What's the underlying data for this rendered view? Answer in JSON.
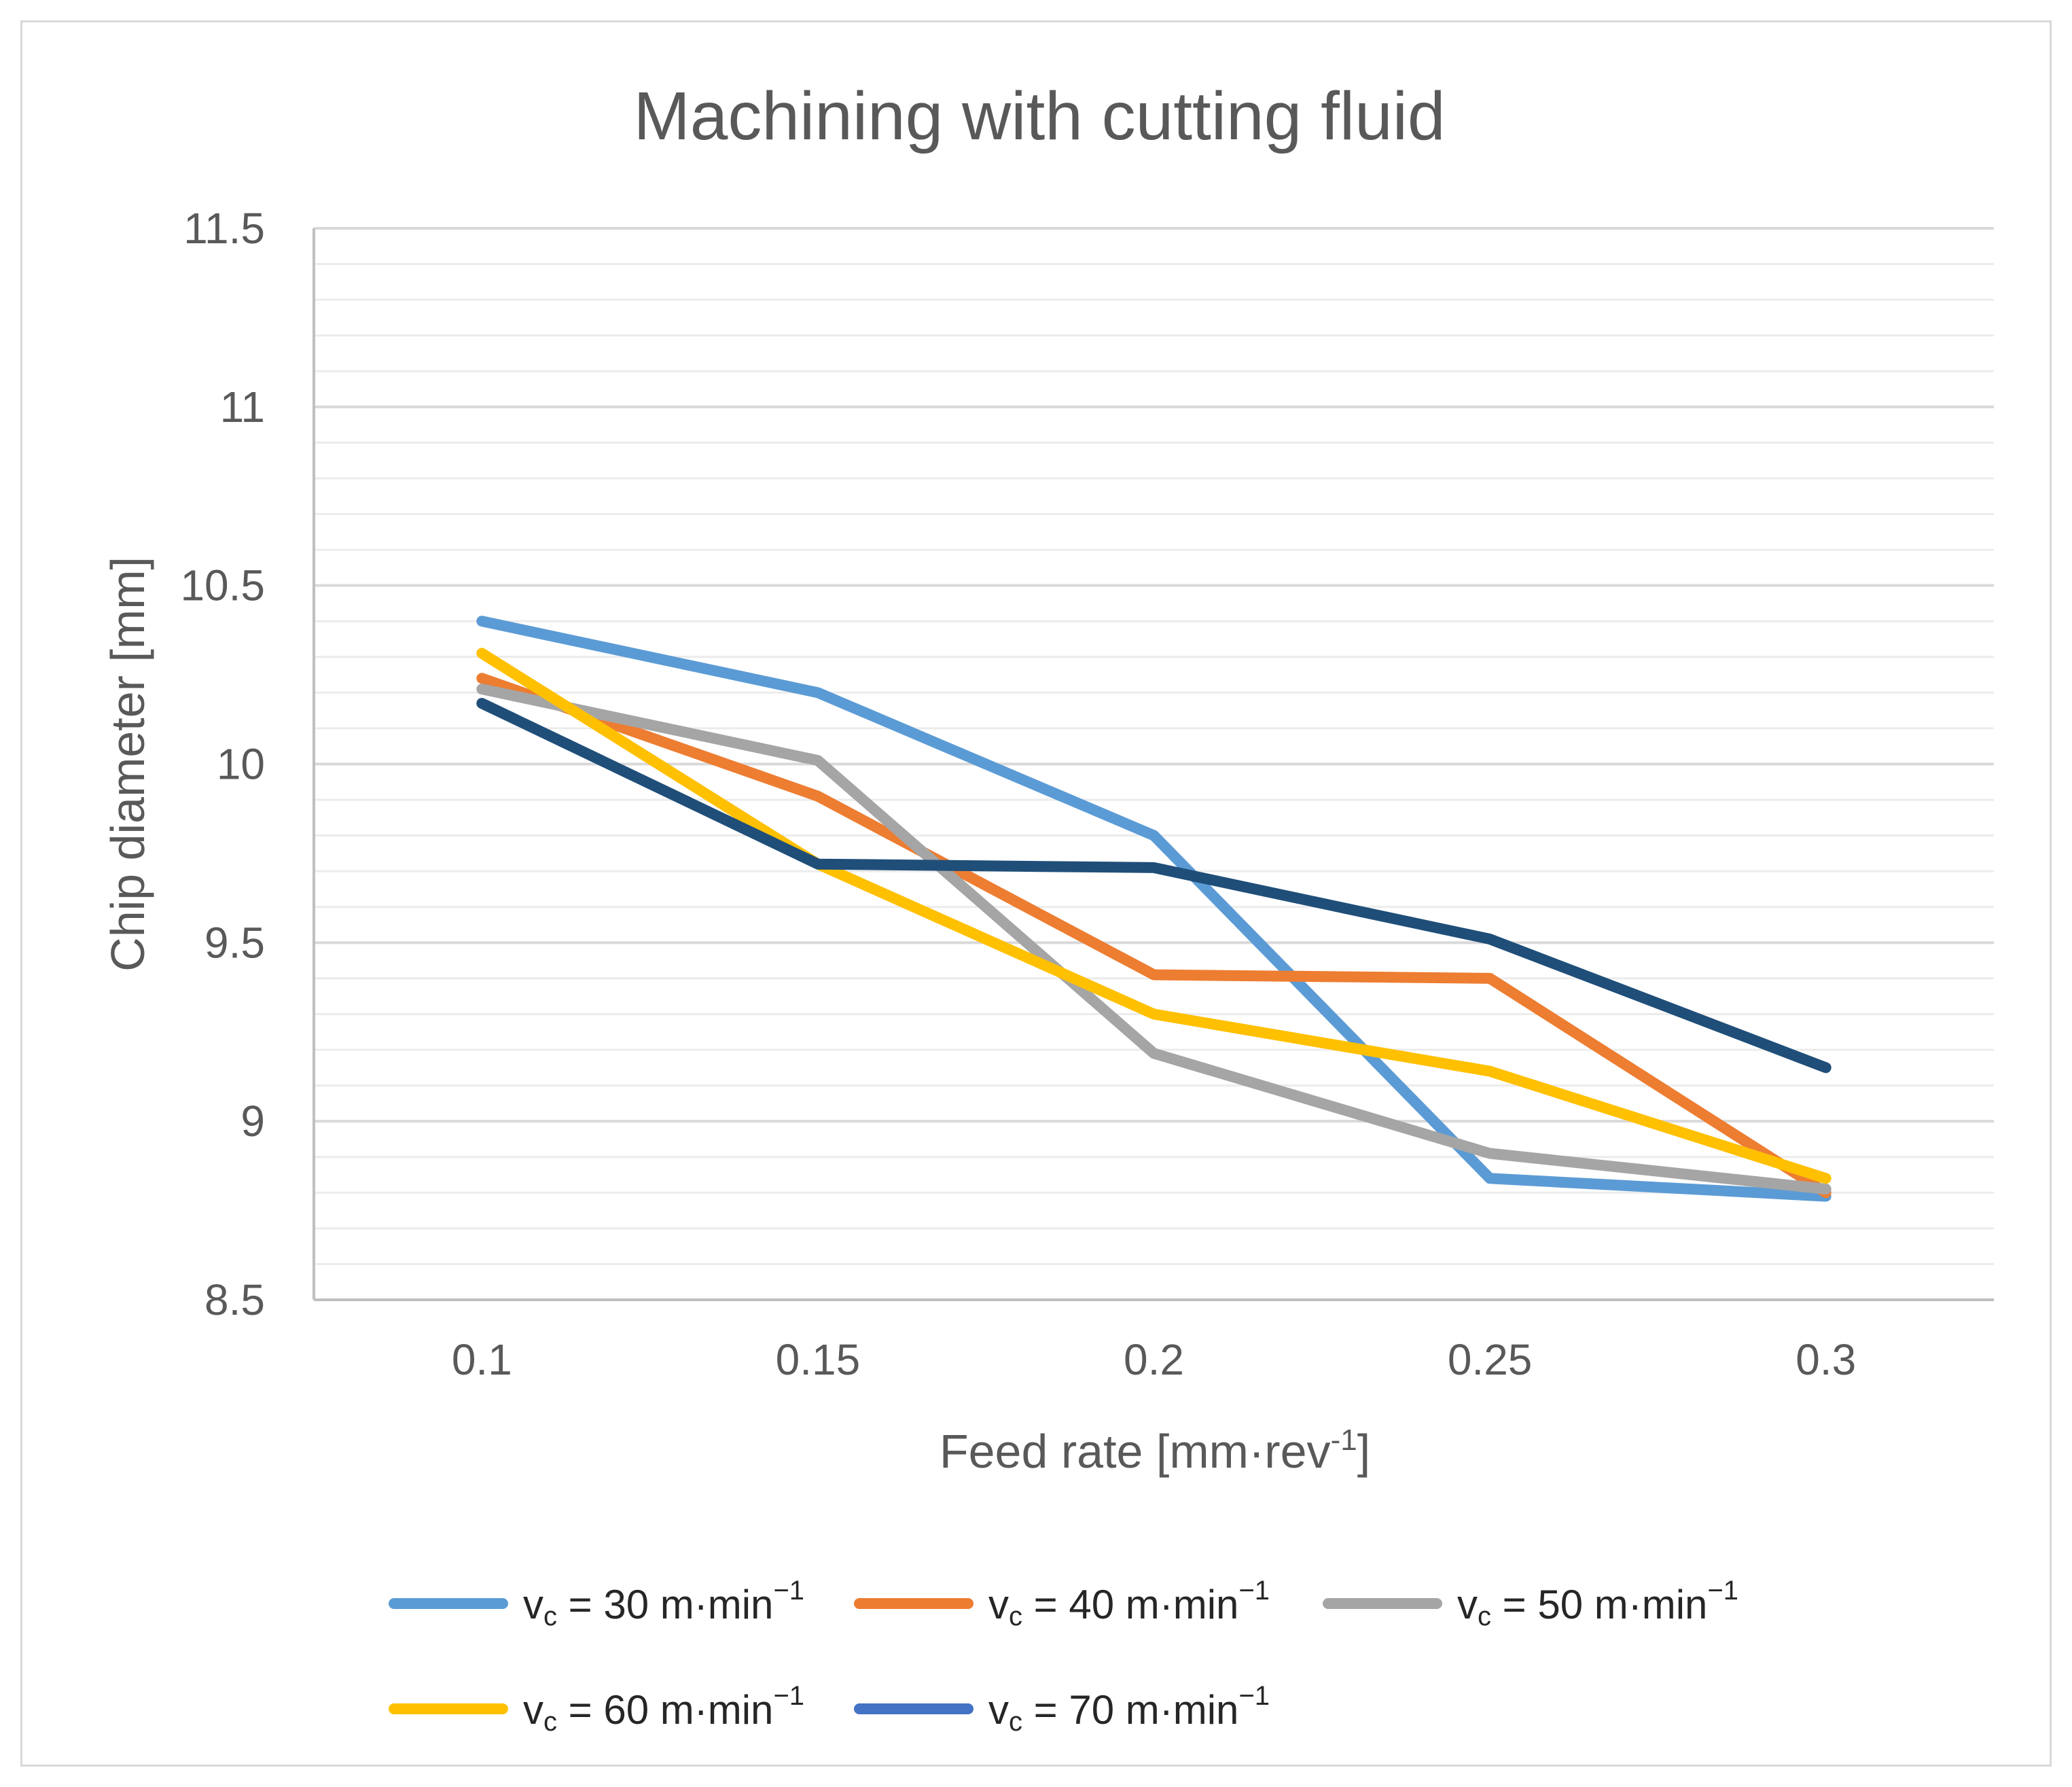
{
  "chart_data": {
    "type": "line",
    "title": "Machining with cutting fluid",
    "xlabel": "Feed rate [mm·rev",
    "xlabel_sup": "-1",
    "xlabel_end": "]",
    "ylabel": "Chip diameter [mm]",
    "categories": [
      "0.1",
      "0.15",
      "0.2",
      "0.25",
      "0.3"
    ],
    "yticks": [
      "8.5",
      "9",
      "9.5",
      "10",
      "10.5",
      "11",
      "11.5"
    ],
    "ylim": [
      8.5,
      11.5
    ],
    "ymajor": 0.5,
    "yminor": 0.1,
    "grid": true,
    "legend_position": "bottom",
    "series": [
      {
        "name": "v",
        "sub": "c",
        "label": " = 30 m·min",
        "sup": "−1",
        "color": "#5b9bd5",
        "values": [
          10.4,
          10.2,
          9.8,
          8.84,
          8.79
        ]
      },
      {
        "name": "v",
        "sub": "c",
        "label": " = 40 m·min",
        "sup": "−1",
        "color": "#ed7d31",
        "values": [
          10.24,
          9.91,
          9.41,
          9.4,
          8.8
        ]
      },
      {
        "name": "v",
        "sub": "c",
        "label": " = 50 m·min",
        "sup": "−1",
        "color": "#a5a5a5",
        "values": [
          10.21,
          10.01,
          9.19,
          8.91,
          8.81
        ]
      },
      {
        "name": "v",
        "sub": "c",
        "label": " = 60 m·min",
        "sup": "−1",
        "color": "#ffc000",
        "values": [
          10.31,
          9.72,
          9.3,
          9.14,
          8.84
        ]
      },
      {
        "name": "v",
        "sub": "c",
        "label": " = 70 m·min",
        "sup": "−1",
        "color": "#1f4e79",
        "legend_color": "#4472c4",
        "values": [
          10.17,
          9.72,
          9.71,
          9.51,
          9.15
        ]
      }
    ]
  }
}
